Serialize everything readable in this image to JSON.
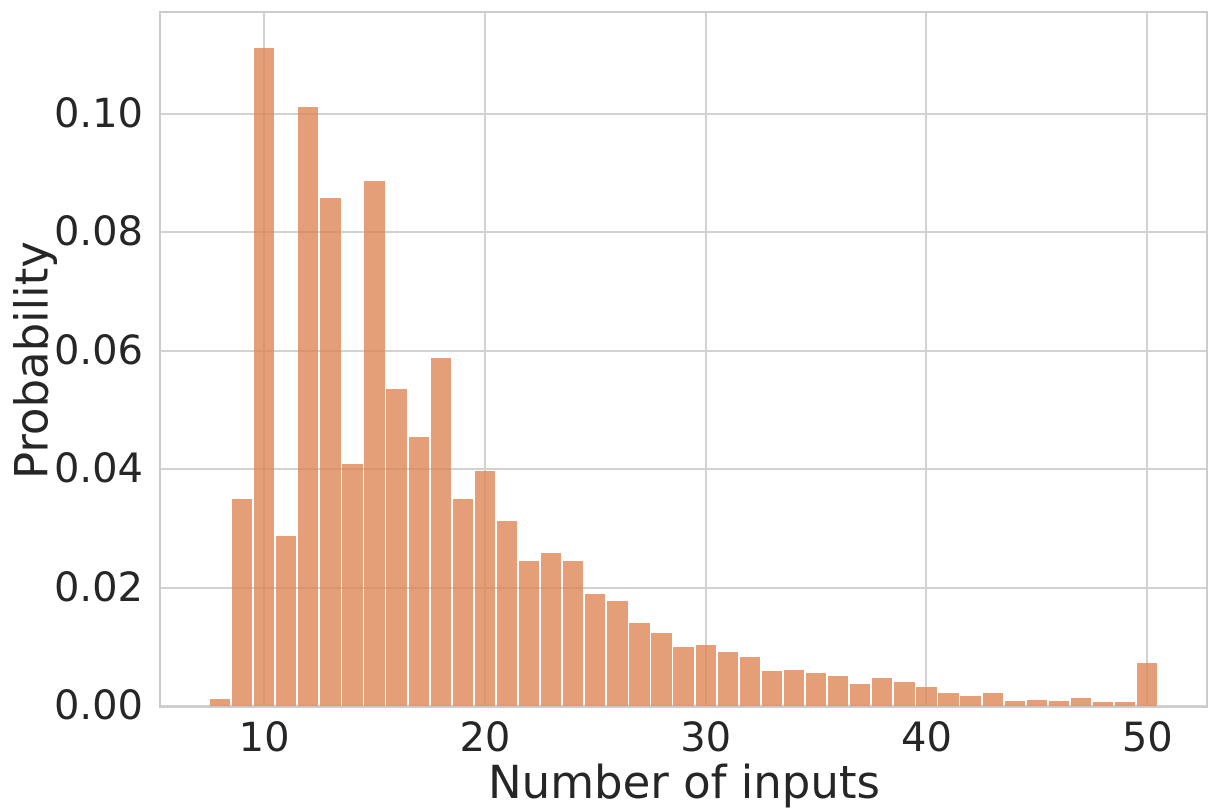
{
  "chart_data": {
    "type": "bar",
    "subtype": "histogram",
    "title": "",
    "xlabel": "Number of inputs",
    "ylabel": "Probability",
    "x": [
      8,
      9,
      10,
      11,
      12,
      13,
      14,
      15,
      16,
      17,
      18,
      19,
      20,
      21,
      22,
      23,
      24,
      25,
      26,
      27,
      28,
      29,
      30,
      31,
      32,
      33,
      34,
      35,
      36,
      37,
      38,
      39,
      40,
      41,
      42,
      43,
      44,
      45,
      46,
      47,
      48,
      49,
      50
    ],
    "values": [
      0.0012,
      0.035,
      0.1111,
      0.0287,
      0.1012,
      0.0857,
      0.0409,
      0.0887,
      0.0535,
      0.0454,
      0.0588,
      0.0349,
      0.0397,
      0.0313,
      0.0245,
      0.0258,
      0.0245,
      0.0189,
      0.0178,
      0.0141,
      0.0123,
      0.01,
      0.0103,
      0.0091,
      0.0082,
      0.0059,
      0.0061,
      0.0055,
      0.0051,
      0.0038,
      0.0047,
      0.0041,
      0.0032,
      0.0022,
      0.0017,
      0.0022,
      0.0008,
      0.0011,
      0.0009,
      0.0014,
      0.0006,
      0.0007,
      0.0073
    ],
    "bin_width": 1,
    "bar_rel_width": 0.92,
    "xlim": [
      5.33,
      52.66
    ],
    "ylim": [
      0,
      0.117
    ],
    "xtick_values": [
      10,
      20,
      30,
      40,
      50
    ],
    "xtick_labels": [
      "10",
      "20",
      "30",
      "40",
      "50"
    ],
    "ytick_values": [
      0.0,
      0.02,
      0.04,
      0.06,
      0.08,
      0.1
    ],
    "ytick_labels": [
      "0.00",
      "0.02",
      "0.04",
      "0.06",
      "0.08",
      "0.10"
    ],
    "grid": true,
    "legend": null,
    "colors": {
      "bar_fill": "rgba(221, 132, 82, 0.78)",
      "grid": "#d2d2d2",
      "spine": "#cccccc",
      "text": "#262626",
      "background": "#ffffff"
    }
  }
}
